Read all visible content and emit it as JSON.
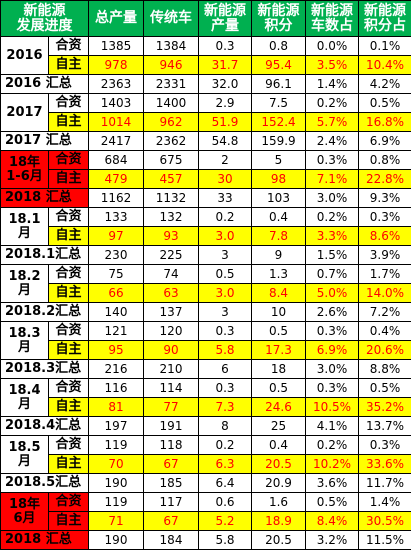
{
  "headers": [
    "新能源\n发展进度",
    "总产量",
    "传统车",
    "新能源\n产量",
    "新能源\n积分",
    "新能源\n车数占",
    "新能源\n积分占"
  ],
  "jv_label": "合资",
  "own_label": "自主",
  "groups": [
    {
      "period": "2016",
      "highlight": false,
      "jv": [
        "1385",
        "1384",
        "0.3",
        "0.8",
        "0.0%",
        "0.1%"
      ],
      "own": [
        "978",
        "946",
        "31.7",
        "95.4",
        "3.5%",
        "10.4%"
      ],
      "sum_label": "2016 汇总",
      "sum": [
        "2363",
        "2331",
        "32.0",
        "96.1",
        "1.4%",
        "4.2%"
      ]
    },
    {
      "period": "2017",
      "highlight": false,
      "jv": [
        "1403",
        "1400",
        "2.9",
        "7.5",
        "0.2%",
        "0.5%"
      ],
      "own": [
        "1014",
        "962",
        "51.9",
        "152.4",
        "5.7%",
        "16.8%"
      ],
      "sum_label": "2017 汇总",
      "sum": [
        "2417",
        "2362",
        "54.8",
        "159.9",
        "2.4%",
        "6.9%"
      ]
    },
    {
      "period": "18年\n1-6月",
      "highlight": true,
      "jv": [
        "684",
        "675",
        "2",
        "5",
        "0.3%",
        "0.8%"
      ],
      "own": [
        "479",
        "457",
        "30",
        "98",
        "7.1%",
        "22.8%"
      ],
      "sum_label": "2018 汇总",
      "sum_highlight": true,
      "sum": [
        "1162",
        "1132",
        "33",
        "103",
        "3.0%",
        "9.3%"
      ]
    },
    {
      "period": "18.1\n月",
      "highlight": false,
      "jv": [
        "133",
        "132",
        "0.2",
        "0.4",
        "0.2%",
        "0.3%"
      ],
      "own": [
        "97",
        "93",
        "3.0",
        "7.8",
        "3.3%",
        "8.6%"
      ],
      "sum_label": "2018.1汇总",
      "sum": [
        "230",
        "225",
        "3",
        "9",
        "1.5%",
        "3.9%"
      ]
    },
    {
      "period": "18.2\n月",
      "highlight": false,
      "jv": [
        "75",
        "74",
        "0.5",
        "1.3",
        "0.7%",
        "1.7%"
      ],
      "own": [
        "66",
        "63",
        "3.0",
        "8.4",
        "5.0%",
        "14.0%"
      ],
      "sum_label": "2018.2汇总",
      "sum": [
        "140",
        "137",
        "3",
        "10",
        "2.6%",
        "7.2%"
      ]
    },
    {
      "period": "18.3\n月",
      "highlight": false,
      "jv": [
        "121",
        "120",
        "0.3",
        "0.5",
        "0.3%",
        "0.4%"
      ],
      "own": [
        "95",
        "90",
        "5.8",
        "17.3",
        "6.9%",
        "20.6%"
      ],
      "sum_label": "2018.3汇总",
      "sum": [
        "216",
        "210",
        "6",
        "18",
        "3.0%",
        "8.8%"
      ]
    },
    {
      "period": "18.4\n月",
      "highlight": false,
      "jv": [
        "116",
        "114",
        "0.3",
        "0.5",
        "0.3%",
        "0.5%"
      ],
      "own": [
        "81",
        "77",
        "7.3",
        "24.6",
        "10.5%",
        "35.2%"
      ],
      "sum_label": "2018.4汇总",
      "sum": [
        "197",
        "191",
        "8",
        "25",
        "4.1%",
        "13.7%"
      ]
    },
    {
      "period": "18.5\n月",
      "highlight": false,
      "jv": [
        "119",
        "118",
        "0.2",
        "0.4",
        "0.2%",
        "0.3%"
      ],
      "own": [
        "70",
        "67",
        "6.3",
        "20.5",
        "10.2%",
        "33.6%"
      ],
      "sum_label": "2018.5汇总",
      "sum": [
        "190",
        "185",
        "6.4",
        "20.9",
        "3.6%",
        "11.7%"
      ]
    },
    {
      "period": "18年\n6月",
      "highlight": true,
      "jv": [
        "119",
        "117",
        "0.6",
        "1.6",
        "0.5%",
        "1.4%"
      ],
      "own": [
        "71",
        "67",
        "5.2",
        "18.9",
        "8.4%",
        "30.5%"
      ],
      "sum_label": "2018 汇总",
      "sum_highlight": true,
      "sum": [
        "190",
        "184",
        "5.8",
        "20.5",
        "3.2%",
        "11.5%"
      ]
    }
  ]
}
